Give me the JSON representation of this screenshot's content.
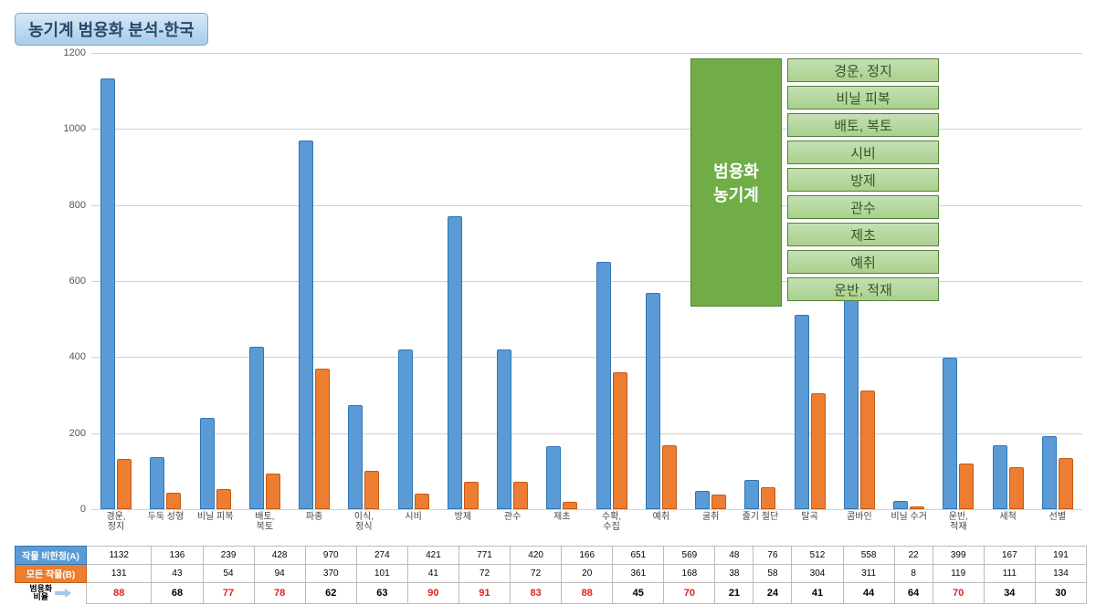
{
  "title": "농기계 범용화 분석-한국",
  "chart": {
    "type": "bar",
    "ylim": [
      0,
      1200
    ],
    "ytick_step": 200,
    "background_color": "#ffffff",
    "grid_color": "#d0d0d0",
    "series": [
      {
        "key": "A",
        "label": "작물 비한정(A)",
        "color": "#5b9bd5"
      },
      {
        "key": "B",
        "label": "모든 작물(B)",
        "color": "#ed7d31"
      }
    ],
    "categories": [
      {
        "label": "경운,\n정지",
        "A": 1132,
        "B": 131,
        "ratio": 88,
        "hi": true
      },
      {
        "label": "두둑 성형",
        "A": 136,
        "B": 43,
        "ratio": 68,
        "hi": false
      },
      {
        "label": "비닐 피복",
        "A": 239,
        "B": 54,
        "ratio": 77,
        "hi": true
      },
      {
        "label": "배토,\n복토",
        "A": 428,
        "B": 94,
        "ratio": 78,
        "hi": true
      },
      {
        "label": "파종",
        "A": 970,
        "B": 370,
        "ratio": 62,
        "hi": false
      },
      {
        "label": "이식,\n정식",
        "A": 274,
        "B": 101,
        "ratio": 63,
        "hi": false
      },
      {
        "label": "시비",
        "A": 421,
        "B": 41,
        "ratio": 90,
        "hi": true
      },
      {
        "label": "방제",
        "A": 771,
        "B": 72,
        "ratio": 91,
        "hi": true
      },
      {
        "label": "관수",
        "A": 420,
        "B": 72,
        "ratio": 83,
        "hi": true
      },
      {
        "label": "제초",
        "A": 166,
        "B": 20,
        "ratio": 88,
        "hi": true
      },
      {
        "label": "수확,\n수집",
        "A": 651,
        "B": 361,
        "ratio": 45,
        "hi": false
      },
      {
        "label": "예취",
        "A": 569,
        "B": 168,
        "ratio": 70,
        "hi": true
      },
      {
        "label": "굴취",
        "A": 48,
        "B": 38,
        "ratio": 21,
        "hi": false
      },
      {
        "label": "줄기 절단",
        "A": 76,
        "B": 58,
        "ratio": 24,
        "hi": false
      },
      {
        "label": "탈곡",
        "A": 512,
        "B": 304,
        "ratio": 41,
        "hi": false
      },
      {
        "label": "콤바인",
        "A": 558,
        "B": 311,
        "ratio": 44,
        "hi": false
      },
      {
        "label": "비닐 수거",
        "A": 22,
        "B": 8,
        "ratio": 64,
        "hi": false
      },
      {
        "label": "운반,\n적재",
        "A": 399,
        "B": 119,
        "ratio": 70,
        "hi": true
      },
      {
        "label": "세척",
        "A": 167,
        "B": 111,
        "ratio": 34,
        "hi": false
      },
      {
        "label": "선별",
        "A": 191,
        "B": 134,
        "ratio": 30,
        "hi": false
      }
    ]
  },
  "ratio_label": "범용화\n비율",
  "overlay": {
    "block": "범용화\n농기계",
    "items": [
      "경운, 정지",
      "비닐 피복",
      "배토, 복토",
      "시비",
      "방제",
      "관수",
      "제초",
      "예취",
      "운반, 적재"
    ]
  }
}
